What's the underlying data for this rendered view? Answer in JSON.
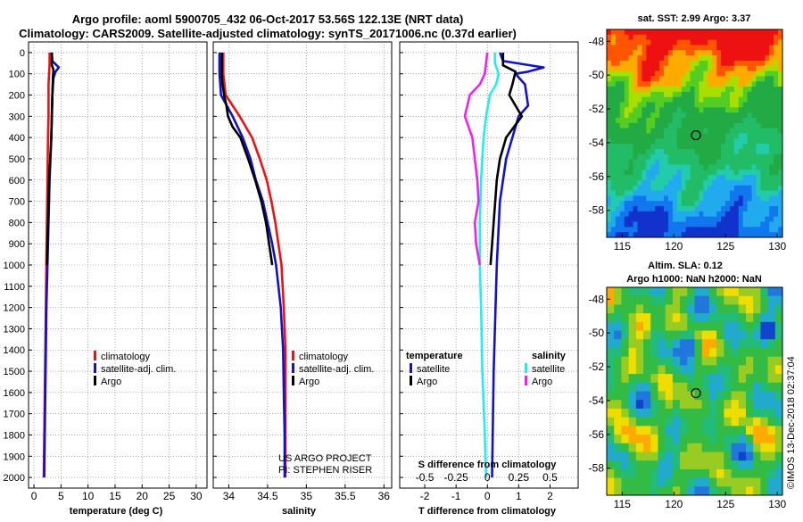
{
  "header": {
    "title_line1": "Argo profile: aoml 5900705_432 06-Oct-2017 53.56S 122.13E (NRT data)",
    "title_line2": "Climatology: CARS2009. Satellite-adjusted climatology: synTS_20171006.nc (0.37d earlier)"
  },
  "colors": {
    "climatology": "#ee1111",
    "satellite": "#1111cc",
    "argo": "#000000",
    "sat_diff": "#22eeee",
    "argo_diff": "#ee22ee"
  },
  "depth_ticks": [
    0,
    100,
    200,
    300,
    400,
    500,
    600,
    700,
    800,
    900,
    1000,
    1100,
    1200,
    1300,
    1400,
    1500,
    1600,
    1700,
    1800,
    1900,
    2000
  ],
  "chart_data": [
    {
      "type": "line",
      "xlabel": "temperature (deg C)",
      "ylabel": "depth",
      "xlim": [
        -1,
        32
      ],
      "ylim": [
        2050,
        -50
      ],
      "xticks": [
        0,
        5,
        10,
        15,
        20,
        25,
        30
      ],
      "xtick_labels": [
        "0",
        "5",
        "10",
        "15",
        "20",
        "25",
        "30"
      ],
      "legend": [
        "climatology",
        "satellite-adj. clim.",
        "Argo"
      ],
      "series": [
        {
          "name": "climatology",
          "color": "#ee1111",
          "depth": [
            0,
            50,
            100,
            150,
            200,
            300,
            400,
            600,
            800,
            1000,
            1200,
            1400,
            1600,
            1800,
            2000
          ],
          "values": [
            2.9,
            2.9,
            2.8,
            2.7,
            2.7,
            2.7,
            2.6,
            2.5,
            2.4,
            2.3,
            2.2,
            2.1,
            2.0,
            1.9,
            1.8
          ]
        },
        {
          "name": "satellite-adj. clim.",
          "color": "#1111cc",
          "depth": [
            0,
            40,
            70,
            90,
            120,
            200,
            300,
            400,
            600,
            800,
            1000,
            1200,
            1400,
            1600,
            1800,
            2000
          ],
          "values": [
            3.3,
            3.4,
            4.6,
            4.0,
            3.6,
            3.4,
            3.3,
            3.2,
            2.9,
            2.7,
            2.5,
            2.3,
            2.2,
            2.1,
            2.0,
            1.9
          ]
        },
        {
          "name": "Argo",
          "color": "#000000",
          "depth": [
            0,
            60,
            80,
            120,
            200,
            300,
            400,
            600,
            800,
            1000
          ],
          "values": [
            3.3,
            3.3,
            3.6,
            3.5,
            3.4,
            3.3,
            3.2,
            2.8,
            2.6,
            2.4
          ]
        }
      ]
    },
    {
      "type": "line",
      "xlabel": "salinity",
      "ylabel": "depth",
      "xlim": [
        33.8,
        36.1
      ],
      "ylim": [
        2050,
        -50
      ],
      "xticks": [
        34,
        34.5,
        35,
        35.5,
        36
      ],
      "xtick_labels": [
        "34",
        "34.5",
        "35",
        "35.5",
        "36"
      ],
      "legend": [
        "climatology",
        "satellite-adj. clim.",
        "Argo"
      ],
      "annotations": [
        "US ARGO PROJECT",
        "PI: STEPHEN RISER"
      ],
      "series": [
        {
          "name": "climatology",
          "color": "#ee1111",
          "depth": [
            0,
            100,
            200,
            300,
            400,
            500,
            600,
            700,
            800,
            900,
            1000,
            1200,
            1400,
            1600,
            1800,
            2000
          ],
          "values": [
            33.93,
            33.93,
            33.96,
            34.14,
            34.3,
            34.4,
            34.49,
            34.55,
            34.6,
            34.64,
            34.68,
            34.71,
            34.73,
            34.73,
            34.73,
            34.73
          ]
        },
        {
          "name": "satellite-adj. clim.",
          "color": "#1111cc",
          "depth": [
            0,
            100,
            200,
            300,
            400,
            500,
            600,
            700,
            800,
            900,
            1000,
            1200,
            1400,
            1600,
            1800,
            2000
          ],
          "values": [
            33.88,
            33.88,
            33.9,
            34.05,
            34.18,
            34.28,
            34.35,
            34.44,
            34.5,
            34.56,
            34.61,
            34.67,
            34.7,
            34.71,
            34.72,
            34.72
          ]
        },
        {
          "name": "Argo",
          "color": "#000000",
          "depth": [
            0,
            100,
            150,
            200,
            250,
            300,
            350,
            400,
            500,
            600,
            700,
            800,
            900,
            1000
          ],
          "values": [
            33.91,
            33.91,
            33.92,
            33.94,
            33.97,
            33.99,
            34.05,
            34.15,
            34.25,
            34.34,
            34.42,
            34.48,
            34.52,
            34.56
          ]
        }
      ]
    },
    {
      "type": "line",
      "xlabel": "T difference from climatology",
      "ylabel": "depth",
      "xlim": [
        -2.8,
        2.9
      ],
      "ylim": [
        2050,
        -50
      ],
      "xticks": [
        -2,
        -1,
        0,
        1,
        2
      ],
      "xtick_labels": [
        "-2",
        "-1",
        "0",
        "1",
        "2"
      ],
      "secondary_xlabel": "S difference from climatology",
      "secondary_xticks": [
        -0.5,
        -0.25,
        0,
        0.25,
        0.5
      ],
      "secondary_xtick_labels": [
        "-0.5",
        "-0.25",
        "0",
        "0.25",
        "0.5"
      ],
      "legend_temperature_title": "temperature",
      "legend_salinity_title": "salinity",
      "legend_temperature": [
        "satellite",
        "Argo"
      ],
      "legend_salinity": [
        "satellite",
        "Argo"
      ],
      "series": [
        {
          "name": "temperature satellite",
          "color": "#1111cc",
          "depth": [
            0,
            40,
            70,
            90,
            100,
            150,
            250,
            300,
            400,
            500,
            700,
            1000,
            1500,
            2000
          ],
          "values": [
            0.4,
            0.5,
            1.8,
            1.3,
            0.9,
            1.2,
            1.3,
            1.0,
            0.8,
            0.6,
            0.4,
            0.3,
            0.2,
            0.15
          ]
        },
        {
          "name": "temperature Argo",
          "color": "#000000",
          "depth": [
            0,
            60,
            90,
            150,
            200,
            300,
            400,
            500,
            600,
            800,
            1000
          ],
          "values": [
            0.5,
            0.5,
            0.9,
            0.8,
            0.7,
            1.1,
            0.6,
            0.4,
            0.3,
            0.2,
            0.1
          ]
        },
        {
          "name": "salinity satellite",
          "color": "#22eeee",
          "depth": [
            0,
            50,
            100,
            150,
            200,
            300,
            400,
            600,
            800,
            1000,
            1200,
            1500,
            1800,
            2000
          ],
          "values": [
            0.06,
            0.06,
            0.09,
            0.07,
            0.02,
            -0.01,
            -0.03,
            -0.05,
            -0.06,
            -0.06,
            -0.05,
            -0.04,
            -0.02,
            -0.01
          ]
        },
        {
          "name": "salinity Argo",
          "color": "#ee22ee",
          "depth": [
            0,
            100,
            150,
            200,
            300,
            400,
            500,
            600,
            700,
            800,
            900,
            1000
          ],
          "values": [
            0.0,
            -0.02,
            -0.06,
            -0.14,
            -0.18,
            -0.12,
            -0.1,
            -0.08,
            -0.07,
            -0.1,
            -0.09,
            -0.06
          ]
        }
      ]
    },
    {
      "type": "heatmap",
      "title": "sat. SST: 2.99 Argo: 3.37",
      "xticks": [
        115,
        120,
        125,
        130
      ],
      "yticks": [
        -48,
        -50,
        -52,
        -54,
        -56,
        -58
      ],
      "xtick_labels": [
        "115",
        "120",
        "125",
        "130"
      ],
      "ytick_labels": [
        "-48",
        "-50",
        "-52",
        "-54",
        "-56",
        "-58"
      ],
      "marker": [
        122.13,
        -53.56
      ]
    },
    {
      "type": "heatmap",
      "title_line1": "Altim. SLA: 0.12",
      "title_line2": "Argo h1000: NaN h2000: NaN",
      "xticks": [
        115,
        120,
        125,
        130
      ],
      "yticks": [
        -48,
        -50,
        -52,
        -54,
        -56,
        -58
      ],
      "xtick_labels": [
        "115",
        "120",
        "125",
        "130"
      ],
      "ytick_labels": [
        "-48",
        "-50",
        "-52",
        "-54",
        "-56",
        "-58"
      ],
      "marker": [
        122.13,
        -53.56
      ]
    }
  ],
  "footer": {
    "stamp": "©IMOS 13-Dec-2018 02:37:04"
  }
}
